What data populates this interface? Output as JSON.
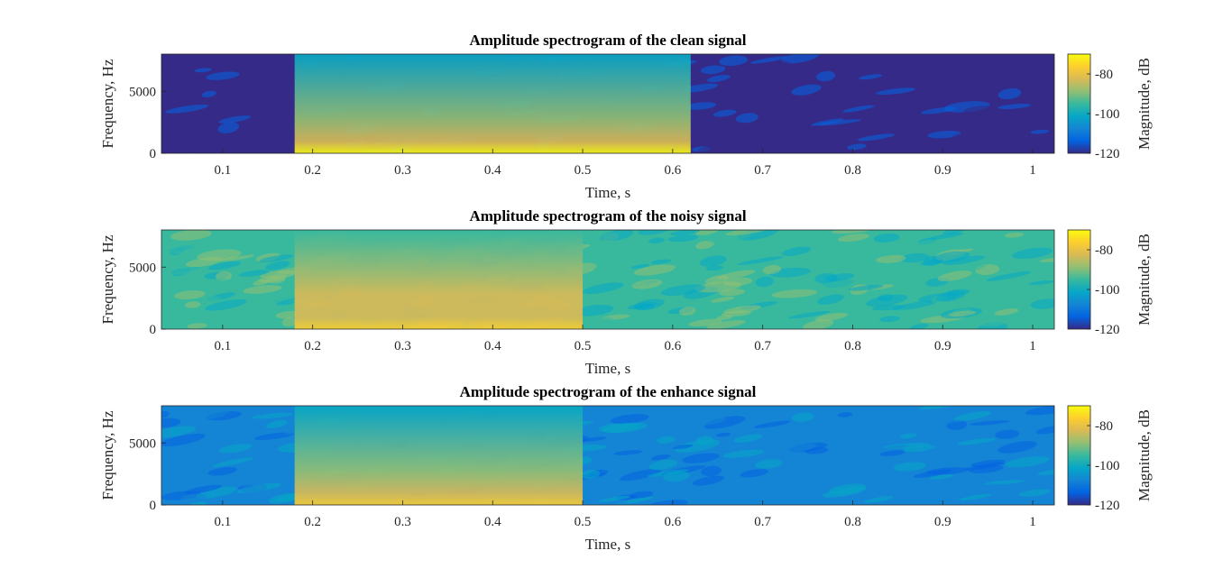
{
  "chart_data": [
    {
      "type": "heatmap",
      "title": "Amplitude spectrogram of the clean signal",
      "xlabel": "Time, s",
      "ylabel": "Frequency, Hz",
      "xlim": [
        0.032,
        1.024
      ],
      "ylim": [
        0,
        8000
      ],
      "xticks": [
        0.1,
        0.2,
        0.3,
        0.4,
        0.5,
        0.6,
        0.7,
        0.8,
        0.9,
        1
      ],
      "yticks": [
        0,
        5000
      ],
      "colorbar": {
        "label": "Magnitude, dB",
        "range": [
          -120,
          -70
        ],
        "ticks": [
          -80,
          -100,
          -120
        ]
      },
      "colormap": "parula",
      "description_values": {
        "speech_segments": [
          {
            "start": 0.18,
            "end": 0.62,
            "level_low_freq_db": -72,
            "level_high_freq_db": -100
          }
        ],
        "background_db": -117
      }
    },
    {
      "type": "heatmap",
      "title": "Amplitude spectrogram of the noisy signal",
      "xlabel": "Time, s",
      "ylabel": "Frequency, Hz",
      "xlim": [
        0.032,
        1.024
      ],
      "ylim": [
        0,
        8000
      ],
      "xticks": [
        0.1,
        0.2,
        0.3,
        0.4,
        0.5,
        0.6,
        0.7,
        0.8,
        0.9,
        1
      ],
      "yticks": [
        0,
        5000
      ],
      "colorbar": {
        "label": "Magnitude, dB",
        "range": [
          -120,
          -70
        ],
        "ticks": [
          -80,
          -100,
          -120
        ]
      },
      "colormap": "parula",
      "description_values": {
        "speech_segments": [
          {
            "start": 0.18,
            "end": 0.5,
            "level_low_freq_db": -75,
            "level_high_freq_db": -92
          }
        ],
        "background_db": -95
      }
    },
    {
      "type": "heatmap",
      "title": "Amplitude spectrogram of the enhance signal",
      "xlabel": "Time, s",
      "ylabel": "Frequency, Hz",
      "xlim": [
        0.032,
        1.024
      ],
      "ylim": [
        0,
        8000
      ],
      "xticks": [
        0.1,
        0.2,
        0.3,
        0.4,
        0.5,
        0.6,
        0.7,
        0.8,
        0.9,
        1
      ],
      "yticks": [
        0,
        5000
      ],
      "colorbar": {
        "label": "Magnitude, dB",
        "range": [
          -120,
          -70
        ],
        "ticks": [
          -80,
          -100,
          -120
        ]
      },
      "colormap": "parula",
      "description_values": {
        "speech_segments": [
          {
            "start": 0.18,
            "end": 0.5,
            "level_low_freq_db": -75,
            "level_high_freq_db": -100
          }
        ],
        "background_db": -110
      }
    }
  ]
}
